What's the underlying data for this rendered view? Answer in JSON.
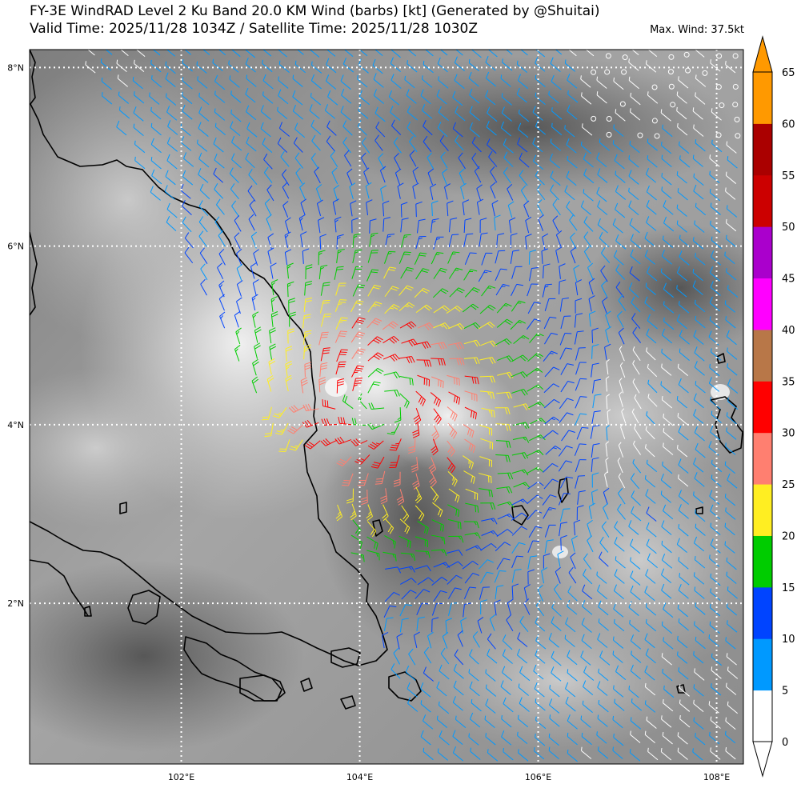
{
  "title": {
    "line1": "FY-3E WindRAD Level 2 Ku Band 20.0 KM Wind (barbs) [kt] (Generated by @Shuitai)",
    "line2": "Valid Time: 2025/11/28 1034Z / Satellite Time: 2025/11/28 1030Z"
  },
  "max_wind": "Max. Wind: 37.5kt",
  "map": {
    "lon_range": [
      100.3,
      108.3
    ],
    "lat_range": [
      0.2,
      8.2
    ],
    "lon_ticks": [
      {
        "value": 102,
        "label": "102°E"
      },
      {
        "value": 104,
        "label": "104°E"
      },
      {
        "value": 106,
        "label": "106°E"
      },
      {
        "value": 108,
        "label": "108°E"
      }
    ],
    "lat_ticks": [
      {
        "value": 2,
        "label": "2°N"
      },
      {
        "value": 4,
        "label": "4°N"
      },
      {
        "value": 6,
        "label": "6°N"
      },
      {
        "value": 8,
        "label": "8°N"
      }
    ],
    "gridlines": "dotted-white"
  },
  "colorbar": {
    "placement": "right",
    "labels": [
      "0",
      "5",
      "10",
      "15",
      "20",
      "25",
      "30",
      "35",
      "40",
      "45",
      "50",
      "55",
      "60",
      "65"
    ],
    "colors": [
      "#ffffff",
      "#0099ff",
      "#0044ff",
      "#00cc00",
      "#ffee22",
      "#ff7f70",
      "#ff0000",
      "#b87748",
      "#ff00ff",
      "#aa00cc",
      "#cc0000",
      "#aa0000",
      "#ff9900"
    ]
  }
}
